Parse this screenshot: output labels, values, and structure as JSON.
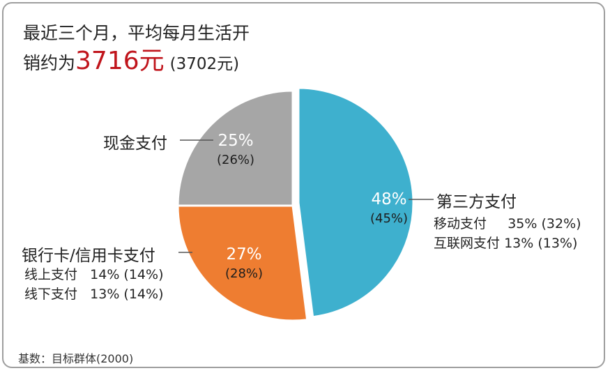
{
  "headline": {
    "line1": "最近三个月，平均每月生活开",
    "line2_prefix": "销约为",
    "amount": "3716元",
    "previous": "(3702元)"
  },
  "chart_data": {
    "type": "pie",
    "slices": [
      {
        "label": "第三方支付",
        "value": 48,
        "display": "48%",
        "previous": "(45%)",
        "color": "#3eb0ce",
        "items": [
          {
            "name": "移动支付",
            "value": "35%",
            "previous": "(32%)"
          },
          {
            "name": "互联网支付",
            "value": "13%",
            "previous": "(13%)"
          }
        ]
      },
      {
        "label": "银行卡/信用卡支付",
        "value": 27,
        "display": "27%",
        "previous": "(28%)",
        "color": "#ee7d31",
        "items": [
          {
            "name": "线上支付",
            "value": "14%",
            "previous": "(14%)"
          },
          {
            "name": "线下支付",
            "value": "13%",
            "previous": "(14%)"
          }
        ]
      },
      {
        "label": "现金支付",
        "value": 25,
        "display": "25%",
        "previous": "(26%)",
        "color": "#a6a6a6",
        "items": []
      }
    ]
  },
  "footer": {
    "base_note": "基数：目标群体(2000)"
  }
}
